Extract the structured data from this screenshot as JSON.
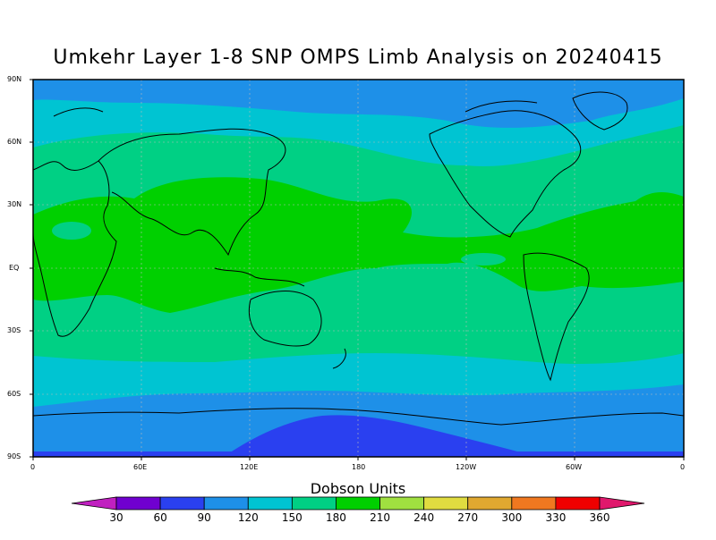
{
  "title": "Umkehr Layer 1-8 SNP OMPS Limb Analysis on 20240415",
  "lat_labels": [
    "90N",
    "60N",
    "30N",
    "EQ",
    "30S",
    "60S",
    "90S"
  ],
  "lon_labels": [
    "0",
    "60E",
    "120E",
    "180",
    "120W",
    "60W",
    "0"
  ],
  "colorbar": {
    "title": "Dobson Units",
    "labels": [
      "30",
      "60",
      "90",
      "120",
      "150",
      "180",
      "210",
      "240",
      "270",
      "300",
      "330",
      "360"
    ],
    "colors": [
      "#c020c0",
      "#7000d0",
      "#2a40f0",
      "#1e90e8",
      "#00c4d2",
      "#00d084",
      "#00d000",
      "#a0e040",
      "#e0dc40",
      "#e0a830",
      "#f07820",
      "#f00000",
      "#e0186c"
    ]
  },
  "map_colors": {
    "band_90": "#1e90e8",
    "band_120": "#00c4d2",
    "band_150": "#00d084",
    "band_180": "#00d000",
    "band_60": "#2a40f0",
    "coast": "#000000"
  }
}
